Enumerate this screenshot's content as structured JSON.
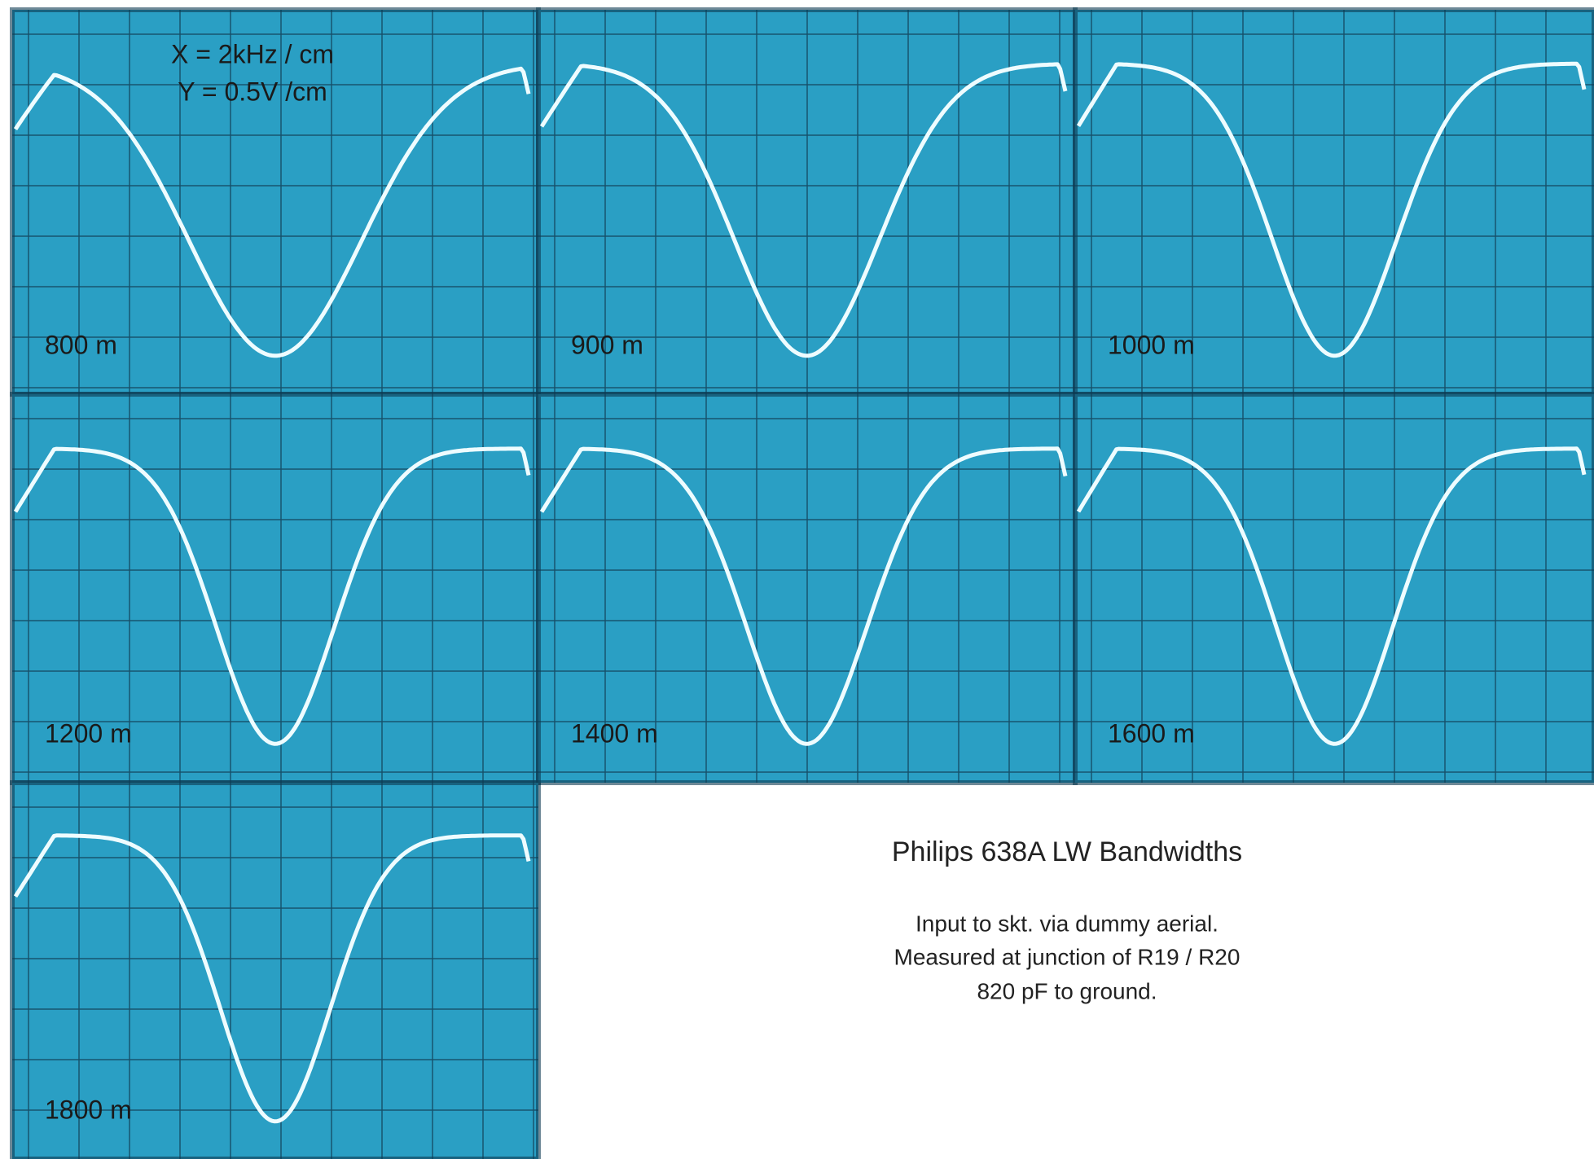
{
  "scale_note": [
    "X = 2kHz / cm",
    "Y = 0.5V /cm"
  ],
  "panels": [
    {
      "label": "800 m"
    },
    {
      "label": "900 m"
    },
    {
      "label": "1000 m"
    },
    {
      "label": "1200 m"
    },
    {
      "label": "1400 m"
    },
    {
      "label": "1600 m"
    },
    {
      "label": "1800 m"
    }
  ],
  "caption": {
    "title": "Philips 638A LW Bandwidths",
    "lines": [
      "Input to skt. via dummy aerial.",
      "Measured at junction of R19 / R20",
      "820 pF to ground."
    ]
  }
}
